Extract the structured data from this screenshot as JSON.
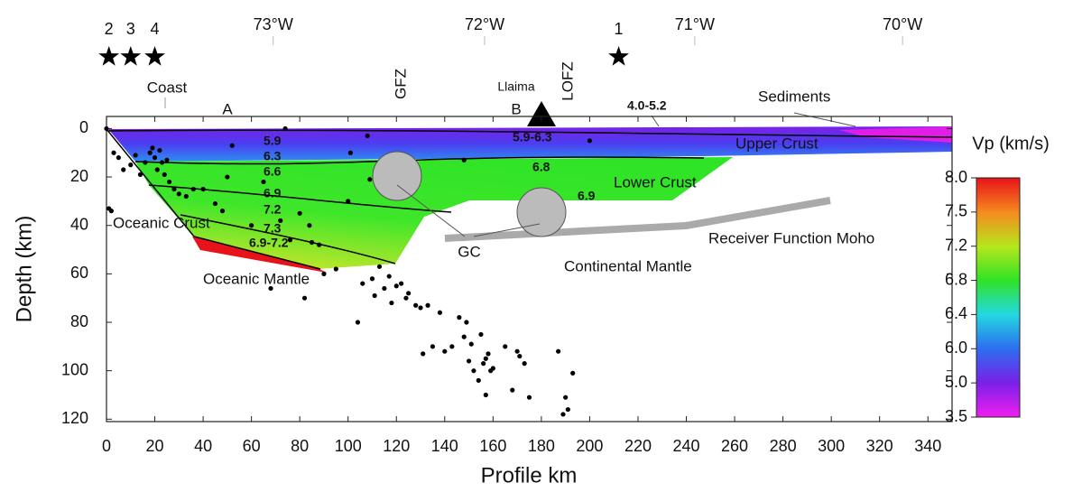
{
  "chart_data": {
    "type": "scatter",
    "x_label": "Profile km",
    "y_label": "Depth (km)",
    "xlim": [
      0,
      350
    ],
    "ylim": [
      -5,
      121
    ],
    "xticks": [
      0,
      20,
      40,
      60,
      80,
      100,
      120,
      140,
      160,
      180,
      200,
      220,
      240,
      260,
      280,
      300,
      320,
      340
    ],
    "yticks": [
      0,
      20,
      40,
      60,
      80,
      100,
      120
    ],
    "top_ticks": [
      {
        "value": 69,
        "label": "73°W"
      },
      {
        "value": 156.5,
        "label": "72°W"
      },
      {
        "value": 243.5,
        "label": "71°W"
      },
      {
        "value": 329.5,
        "label": "70°W"
      }
    ],
    "events": [
      {
        "label": "2",
        "x": 1
      },
      {
        "label": "3",
        "x": 10
      },
      {
        "label": "4",
        "x": 20
      },
      {
        "label": "1",
        "x": 212
      }
    ],
    "series": [
      {
        "color": "#000000",
        "x": [
          0,
          3,
          5,
          7,
          10,
          12,
          14,
          16,
          18,
          19,
          20,
          21,
          22,
          23,
          24,
          25,
          26,
          28,
          30,
          33,
          36,
          40,
          45,
          48,
          50,
          52,
          60,
          65,
          68,
          72,
          74,
          76,
          80,
          82,
          84,
          85,
          88,
          90,
          95,
          100,
          101,
          104,
          106,
          108,
          109,
          110,
          111,
          113,
          115,
          117,
          118,
          120,
          122,
          124,
          125,
          128,
          130,
          131,
          133,
          135,
          138,
          140,
          143,
          146,
          148,
          149,
          150,
          151,
          152,
          154,
          155,
          156,
          157,
          157,
          158,
          159,
          160,
          165,
          168,
          170,
          171,
          173,
          175,
          187,
          189,
          190,
          191,
          193,
          200,
          148,
          1,
          2
        ],
        "values": [
          0,
          10,
          12,
          17,
          15,
          11,
          19,
          14,
          10,
          8,
          12,
          17,
          9,
          14,
          19,
          13,
          22,
          25,
          27,
          28,
          25,
          25,
          31,
          34,
          20,
          7,
          40,
          22,
          66,
          38,
          0,
          46,
          35,
          70,
          40,
          47,
          48,
          60,
          58,
          30,
          10,
          80,
          64,
          3,
          21,
          62,
          69,
          57,
          66,
          61,
          72,
          65,
          64,
          70,
          68,
          73,
          74,
          93,
          73,
          90,
          76,
          92,
          90,
          78,
          86,
          80,
          96,
          89,
          100,
          104,
          85,
          97,
          95,
          110,
          93,
          100,
          99,
          90,
          108,
          92,
          94,
          97,
          111,
          92,
          118,
          111,
          116,
          101,
          5,
          13,
          33,
          34
        ]
      }
    ],
    "colorbar": {
      "label": "Vp (km/s)",
      "ticks": [
        {
          "value": 8,
          "label": "8.0"
        },
        {
          "value": 7.5,
          "label": "7.5"
        },
        {
          "value": 7.2,
          "label": "7.2"
        },
        {
          "value": 6.8,
          "label": "6.8"
        },
        {
          "value": 6.4,
          "label": "6.4"
        },
        {
          "value": 6,
          "label": "6.0"
        },
        {
          "value": 5,
          "label": "5.0"
        },
        {
          "value": 3.5,
          "label": "3.5"
        }
      ],
      "colors": [
        "#e8121a",
        "#f58a1f",
        "#b6e61c",
        "#2fe326",
        "#23d8e0",
        "#2d6ef0",
        "#7a20e8",
        "#f01ef0"
      ]
    },
    "annotations": {
      "coast": "Coast",
      "a": "A",
      "gfz": "GFZ",
      "llaima": "Llaima",
      "b": "B",
      "lofz": "LOFZ",
      "sediments": "Sediments",
      "sed_v": "4.0-5.2",
      "upper_crust": "Upper Crust",
      "lower_crust": "Lower Crust",
      "oceanic_crust": "Oceanic Crust",
      "oceanic_mantle": "Oceanic Mantle",
      "moho": "Receiver Function Moho",
      "continental_mantle": "Continental Mantle",
      "gc": "GC",
      "velocities": [
        "5.9",
        "6.3",
        "6.6",
        "6.9",
        "7.2",
        "7.3",
        "6.9-7.2",
        "5.9-6.3",
        "6.8",
        "6.9"
      ]
    }
  }
}
